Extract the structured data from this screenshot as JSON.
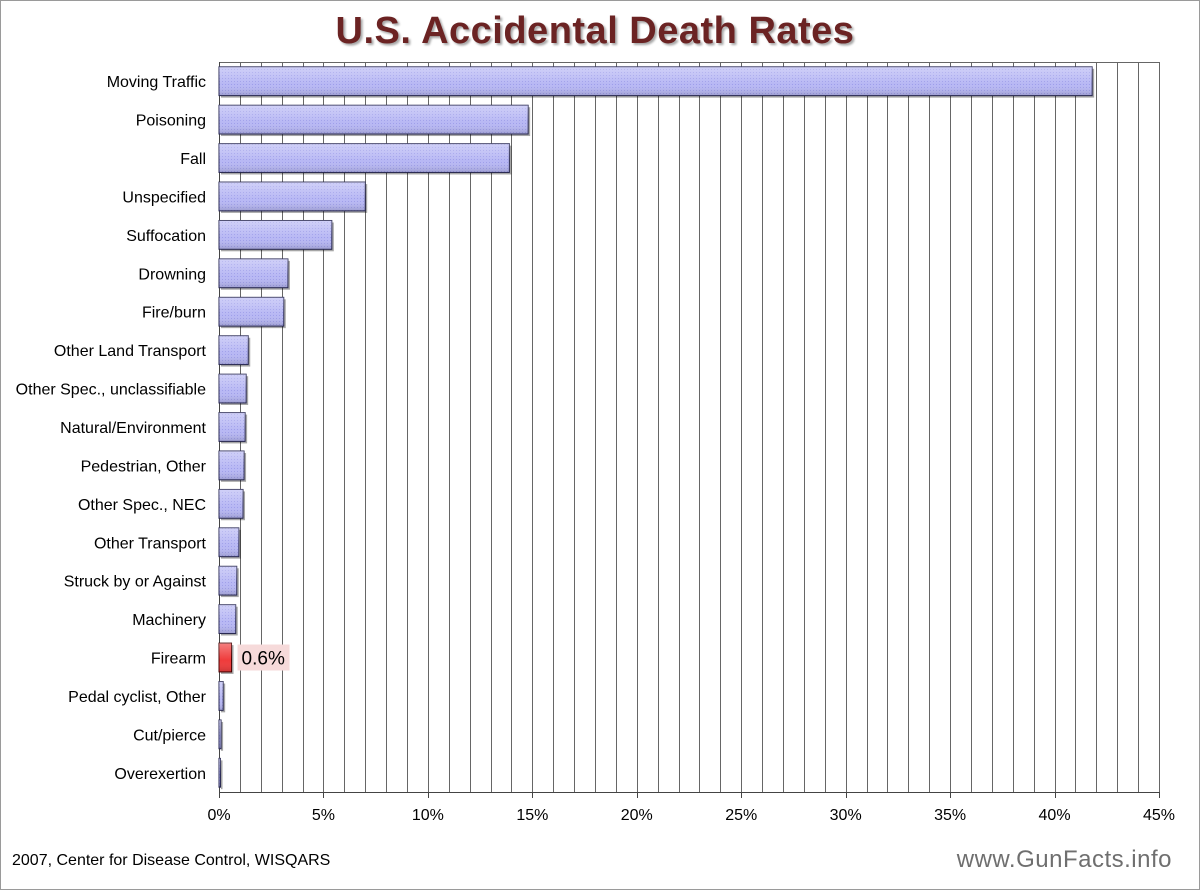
{
  "title": "U.S. Accidental Death Rates",
  "source": "2007, Center for Disease Control, WISQARS",
  "website": "www.GunFacts.info",
  "colors": {
    "title": "#6b2323",
    "bar_fill": "#b8b8f4",
    "bar_stroke": "#2a2a55",
    "highlight_fill": "#ef3b3b",
    "highlight_stroke": "#4a0000",
    "highlight_label_bg": "#f6dada",
    "gridline": "#666666"
  },
  "chart_data": {
    "type": "bar",
    "orientation": "horizontal",
    "title": "U.S. Accidental Death Rates",
    "xlabel": "",
    "ylabel": "",
    "xlim": [
      0,
      45
    ],
    "x_ticks": [
      0,
      5,
      10,
      15,
      20,
      25,
      30,
      35,
      40,
      45
    ],
    "x_tick_labels": [
      "0%",
      "5%",
      "10%",
      "15%",
      "20%",
      "25%",
      "30%",
      "35%",
      "40%",
      "45%"
    ],
    "gridlines": "vertical, every 1%",
    "categories": [
      "Moving Traffic",
      "Poisoning",
      "Fall",
      "Unspecified",
      "Suffocation",
      "Drowning",
      "Fire/burn",
      "Other Land Transport",
      "Other Spec., unclassifiable",
      "Natural/Environment",
      "Pedestrian, Other",
      "Other Spec., NEC",
      "Other Transport",
      "Struck by or Against",
      "Machinery",
      "Firearm",
      "Pedal cyclist, Other",
      "Cut/pierce",
      "Overexertion"
    ],
    "values": [
      41.8,
      14.8,
      13.9,
      7.0,
      5.4,
      3.3,
      3.1,
      1.4,
      1.3,
      1.25,
      1.2,
      1.15,
      0.95,
      0.85,
      0.8,
      0.6,
      0.2,
      0.1,
      0.05
    ],
    "highlight": {
      "category": "Firearm",
      "label": "0.6%"
    }
  }
}
